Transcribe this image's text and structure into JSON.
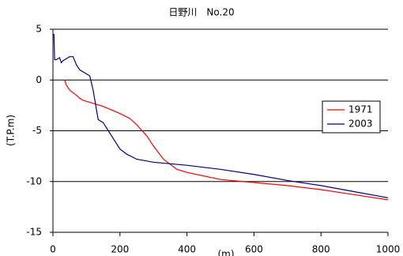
{
  "chart_data": {
    "type": "line",
    "title": "日野川　No.20",
    "x_label": "(m)",
    "y_label": "(T.P.m)",
    "xlim": [
      0,
      1000
    ],
    "xticks": [
      0,
      200,
      400,
      600,
      800,
      1000
    ],
    "ylim": [
      -15,
      5
    ],
    "yticks": [
      5,
      0,
      -5,
      -10,
      -15
    ],
    "grid": true,
    "legend": "right",
    "series": [
      {
        "name": "1971",
        "color": "#ff0000",
        "x": [
          35,
          40,
          50,
          70,
          80,
          90,
          120,
          150,
          200,
          230,
          250,
          280,
          300,
          330,
          370,
          400,
          500,
          600,
          700,
          800,
          900,
          1000
        ],
        "values": [
          0,
          -0.5,
          -1,
          -1.5,
          -1.8,
          -2,
          -2.3,
          -2.6,
          -3.3,
          -3.8,
          -4.4,
          -5.5,
          -6.5,
          -7.8,
          -8.8,
          -9.1,
          -9.8,
          -10.1,
          -10.4,
          -10.8,
          -11.3,
          -11.8
        ]
      },
      {
        "name": "2003",
        "color": "#000080",
        "x": [
          0,
          3,
          5,
          10,
          20,
          25,
          30,
          40,
          50,
          60,
          70,
          80,
          100,
          110,
          120,
          135,
          150,
          175,
          200,
          220,
          250,
          300,
          400,
          500,
          600,
          700,
          800,
          900,
          1000
        ],
        "values": [
          4.5,
          4.5,
          2,
          2,
          2.2,
          1.7,
          1.9,
          2.1,
          2.3,
          2.3,
          1.5,
          1,
          0.6,
          0.4,
          -1,
          -3.9,
          -4.2,
          -5.5,
          -6.8,
          -7.3,
          -7.8,
          -8.1,
          -8.4,
          -8.8,
          -9.3,
          -9.9,
          -10.4,
          -11,
          -11.6
        ]
      }
    ]
  }
}
